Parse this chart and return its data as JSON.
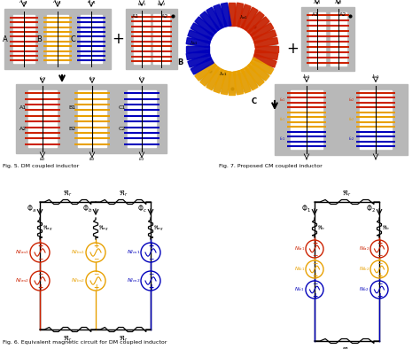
{
  "fig5_label": "Fig. 5. DM coupled inductor",
  "fig6_label": "Fig. 6. Equivalent magnetic circuit for DM coupled inductor",
  "fig7_label": "Fig. 7. Proposed CM coupled inductor",
  "colors": {
    "red": "#CC2200",
    "orange": "#E8A000",
    "blue": "#0000BB",
    "black": "#000000",
    "light_gray": "#B8B8B8",
    "white": "#FFFFFF"
  },
  "background": "#FFFFFF"
}
